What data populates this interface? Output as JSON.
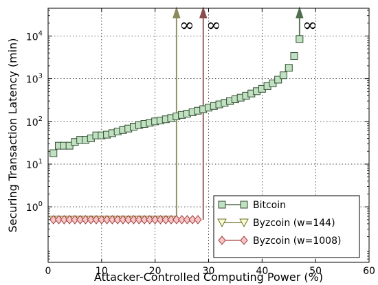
{
  "chart_data": {
    "type": "scatter",
    "xlabel": "Attacker-Controlled Computing Power (%)",
    "ylabel": "Securing Transaction Latency (min)",
    "xlim": [
      0,
      60
    ],
    "ylim_log10": [
      -1.3,
      4.65
    ],
    "yscale": "log",
    "grid": true,
    "legend_position": "bottom-right",
    "x_ticks": [
      0,
      10,
      20,
      30,
      40,
      50,
      60
    ],
    "y_ticks": [
      {
        "exp": 0,
        "base": "10",
        "power": "0"
      },
      {
        "exp": 1,
        "base": "10",
        "power": "1"
      },
      {
        "exp": 2,
        "base": "10",
        "power": "2"
      },
      {
        "exp": 3,
        "base": "10",
        "power": "3"
      },
      {
        "exp": 4,
        "base": "10",
        "power": "4"
      }
    ],
    "series": [
      {
        "name": "Bitcoin",
        "marker": "square",
        "face_color": "#c2e0c2",
        "edge_color": "#2e4d2e",
        "x": [
          1,
          2,
          3,
          4,
          5,
          6,
          7,
          8,
          9,
          10,
          11,
          12,
          13,
          14,
          15,
          16,
          17,
          18,
          19,
          20,
          21,
          22,
          23,
          24,
          25,
          26,
          27,
          28,
          29,
          30,
          31,
          32,
          33,
          34,
          35,
          36,
          37,
          38,
          39,
          40,
          41,
          42,
          43,
          44,
          45,
          46,
          47
        ],
        "y": [
          18,
          27,
          27,
          27,
          33,
          37,
          37,
          40,
          47,
          47,
          49,
          53,
          58,
          63,
          68,
          75,
          82,
          87,
          93,
          100,
          105,
          112,
          120,
          131,
          142,
          152,
          164,
          178,
          193,
          210,
          230,
          250,
          272,
          300,
          330,
          360,
          400,
          450,
          510,
          580,
          670,
          780,
          950,
          1200,
          1800,
          3400,
          8500
        ]
      },
      {
        "name": "Byzcoin (w=144)",
        "marker": "triangle-down",
        "face_color": "#fbfbd2",
        "edge_color": "#6e6e2a",
        "x": [
          1,
          2,
          3,
          4,
          5,
          6,
          7,
          8,
          9,
          10,
          11,
          12,
          13,
          14,
          15,
          16,
          17,
          18,
          19,
          20,
          21,
          22,
          23
        ],
        "y": [
          0.5,
          0.5,
          0.5,
          0.5,
          0.5,
          0.5,
          0.5,
          0.5,
          0.5,
          0.5,
          0.5,
          0.5,
          0.5,
          0.5,
          0.5,
          0.5,
          0.5,
          0.5,
          0.5,
          0.5,
          0.5,
          0.5,
          0.5
        ]
      },
      {
        "name": "Byzcoin (w=1008)",
        "marker": "diamond",
        "face_color": "#f8c6c6",
        "edge_color": "#a04040",
        "x": [
          1,
          2,
          3,
          4,
          5,
          6,
          7,
          8,
          9,
          10,
          11,
          12,
          13,
          14,
          15,
          16,
          17,
          18,
          19,
          20,
          21,
          22,
          23,
          24,
          25,
          26,
          27,
          28
        ],
        "y": [
          0.5,
          0.5,
          0.5,
          0.5,
          0.5,
          0.5,
          0.5,
          0.5,
          0.5,
          0.5,
          0.5,
          0.5,
          0.5,
          0.5,
          0.5,
          0.5,
          0.5,
          0.5,
          0.5,
          0.5,
          0.5,
          0.5,
          0.5,
          0.5,
          0.5,
          0.5,
          0.5,
          0.5
        ]
      }
    ],
    "infinity_arrows": [
      {
        "x": 24,
        "from_y": 0.5,
        "color": "#8c8a5a",
        "label": "∞"
      },
      {
        "x": 29,
        "from_y": 0.5,
        "color": "#8b4e4e",
        "label": "∞"
      },
      {
        "x": 47,
        "from_y": 8500,
        "color": "#4e6e4e",
        "label": "∞"
      }
    ]
  }
}
